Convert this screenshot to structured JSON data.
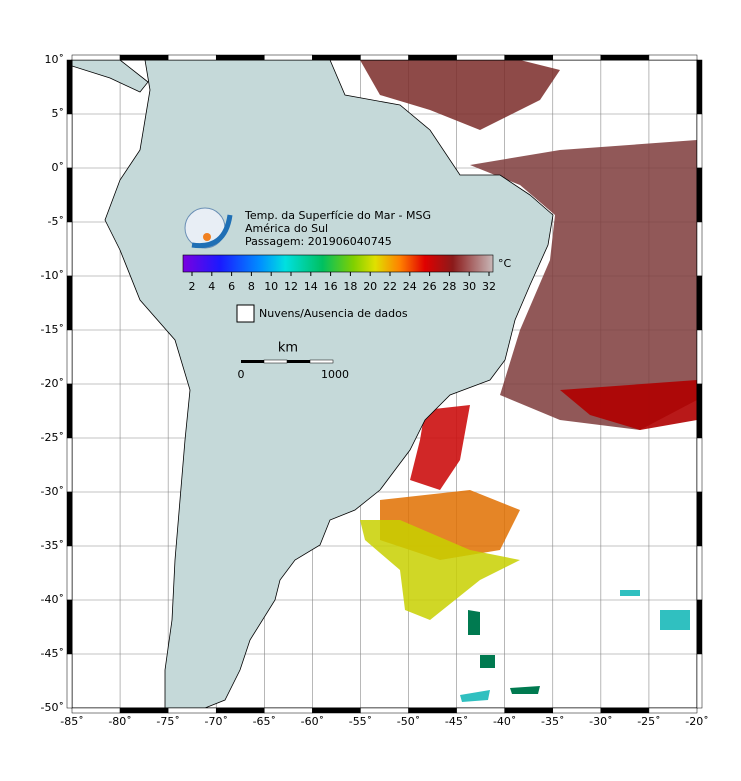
{
  "map": {
    "title": [
      "Temp. da Superfície do Mar - MSG",
      "América do Sul",
      "Passagem: 201906040745"
    ],
    "colorbar": {
      "unit": "°C",
      "ticks": [
        2,
        4,
        6,
        8,
        10,
        12,
        14,
        16,
        18,
        20,
        22,
        24,
        26,
        28,
        30,
        32
      ]
    },
    "legend": "Nuvens/Ausencia de dados",
    "scalebar": {
      "unit": "km",
      "start": "0",
      "end": "1000"
    },
    "lon_ticks": [
      {
        "value": -85,
        "label": "-85˚"
      },
      {
        "value": -80,
        "label": "-80˚"
      },
      {
        "value": -75,
        "label": "-75˚"
      },
      {
        "value": -70,
        "label": "-70˚"
      },
      {
        "value": -65,
        "label": "-65˚"
      },
      {
        "value": -60,
        "label": "-60˚"
      },
      {
        "value": -55,
        "label": "-55˚"
      },
      {
        "value": -50,
        "label": "-50˚"
      },
      {
        "value": -45,
        "label": "-45˚"
      },
      {
        "value": -40,
        "label": "-40˚"
      },
      {
        "value": -35,
        "label": "-35˚"
      },
      {
        "value": -30,
        "label": "-30˚"
      },
      {
        "value": -25,
        "label": "-25˚"
      },
      {
        "value": -20,
        "label": "-20˚"
      }
    ],
    "lat_ticks": [
      {
        "value": 10,
        "label": "10˚"
      },
      {
        "value": 5,
        "label": "5˚"
      },
      {
        "value": 0,
        "label": "0˚"
      },
      {
        "value": -5,
        "label": "-5˚"
      },
      {
        "value": -10,
        "label": "-10˚"
      },
      {
        "value": -15,
        "label": "-15˚"
      },
      {
        "value": -20,
        "label": "-20˚"
      },
      {
        "value": -25,
        "label": "-25˚"
      },
      {
        "value": -30,
        "label": "-30˚"
      },
      {
        "value": -35,
        "label": "-35˚"
      },
      {
        "value": -40,
        "label": "-40˚"
      },
      {
        "value": -45,
        "label": "-45˚"
      },
      {
        "value": -50,
        "label": "-50˚"
      }
    ]
  }
}
